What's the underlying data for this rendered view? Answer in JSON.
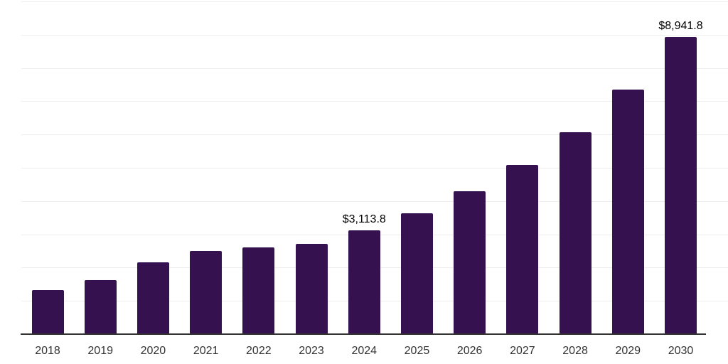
{
  "chart_data": {
    "type": "bar",
    "title": "",
    "xlabel": "",
    "ylabel": "",
    "categories": [
      "2018",
      "2019",
      "2020",
      "2021",
      "2022",
      "2023",
      "2024",
      "2025",
      "2026",
      "2027",
      "2028",
      "2029",
      "2030"
    ],
    "values": [
      1325,
      1620,
      2155,
      2500,
      2605,
      2715,
      3113.8,
      3630,
      4290,
      5085,
      6070,
      7350,
      8941.8
    ],
    "point_labels": [
      null,
      null,
      null,
      null,
      null,
      null,
      "$3,113.8",
      null,
      null,
      null,
      null,
      null,
      "$8,941.8"
    ],
    "ylim": [
      0,
      10000
    ],
    "gridline_interval": 1000,
    "grid": true,
    "legend": false,
    "colors": {
      "bar": "#351150",
      "gridline": "#ededed",
      "axis_line": "#333333",
      "tick_label": "#333333",
      "value_label": "#000000",
      "background": "#ffffff"
    }
  }
}
